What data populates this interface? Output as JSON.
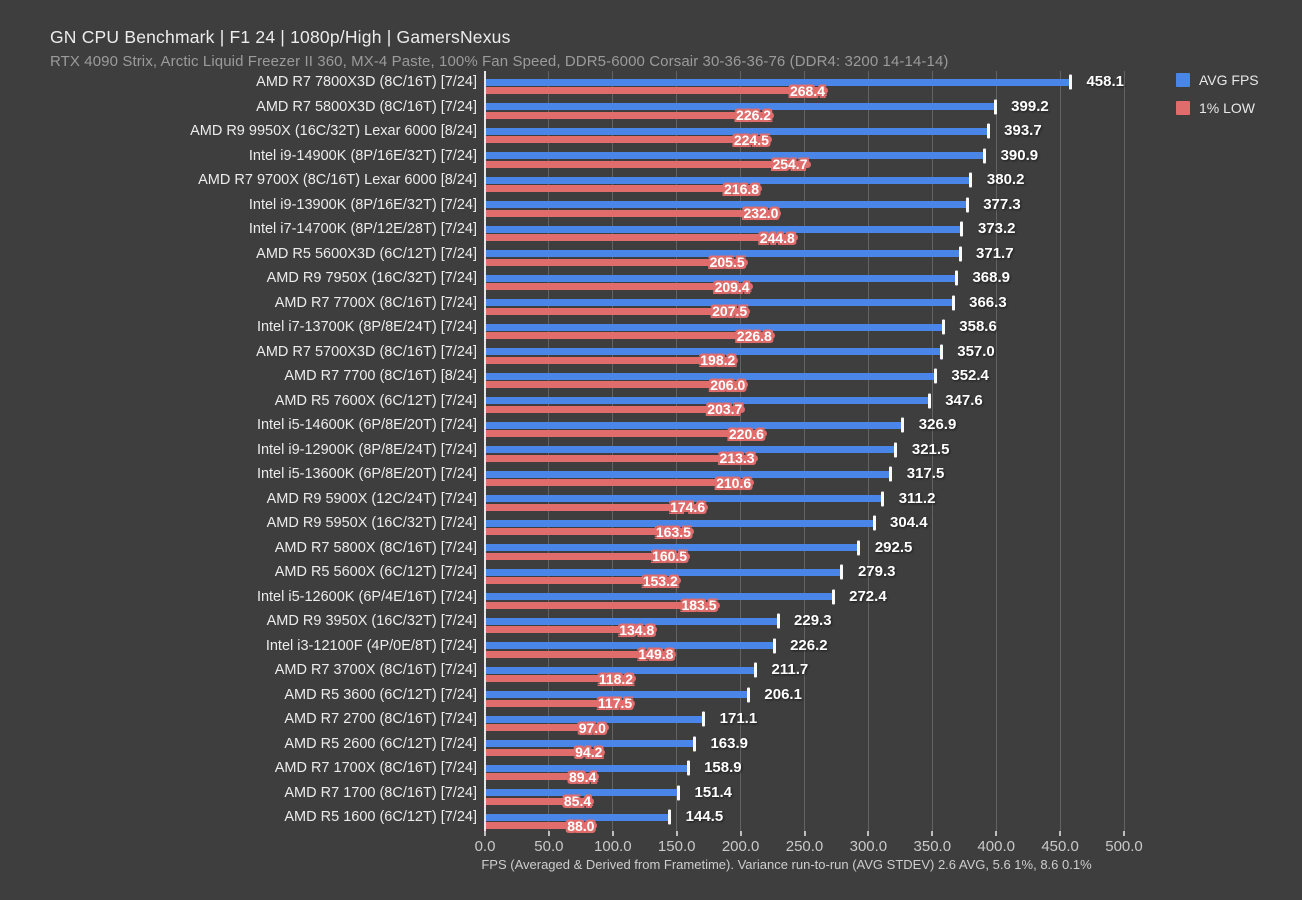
{
  "header": {
    "title": "GN CPU Benchmark | F1 24 | 1080p/High | GamersNexus",
    "subtitle": "RTX 4090 Strix, Arctic Liquid Freezer II 360, MX-4 Paste, 100% Fan Speed, DDR5-6000 Corsair 30-36-36-76 (DDR4: 3200 14-14-14)"
  },
  "legend": {
    "items": [
      {
        "label": "AVG FPS",
        "color": "#4a86e8"
      },
      {
        "label": "1% LOW",
        "color": "#e06c6c"
      }
    ]
  },
  "axis": {
    "ticks": [
      "0.0",
      "50.0",
      "100.0",
      "150.0",
      "200.0",
      "250.0",
      "300.0",
      "350.0",
      "400.0",
      "450.0",
      "500.0"
    ],
    "caption": "FPS (Averaged & Derived from Frametime). Variance run-to-run (AVG STDEV) 2.6 AVG, 5.6 1%, 8.6 0.1%"
  },
  "colors": {
    "background": "#3e3e3e",
    "avg_bar": "#4a86e8",
    "low_bar": "#e06c6c",
    "gridline": "#636363",
    "axis_line": "#e6e6e6",
    "stdev_tick": "#fbfbfb"
  },
  "chart_data": {
    "type": "bar",
    "orientation": "horizontal",
    "title": "GN CPU Benchmark | F1 24 | 1080p/High | GamersNexus",
    "subtitle": "RTX 4090 Strix, Arctic Liquid Freezer II 360, MX-4 Paste, 100% Fan Speed, DDR5-6000 Corsair 30-36-36-76 (DDR4: 3200 14-14-14)",
    "xlabel": "FPS (Averaged & Derived from Frametime). Variance run-to-run (AVG STDEV) 2.6 AVG, 5.6 1%, 8.6 0.1%",
    "xlim": [
      0,
      500
    ],
    "grid": true,
    "legend_position": "top-right",
    "categories": [
      "AMD R7 7800X3D (8C/16T) [7/24]",
      "AMD R7 5800X3D (8C/16T) [7/24]",
      "AMD R9 9950X (16C/32T) Lexar 6000 [8/24]",
      "Intel i9-14900K (8P/16E/32T) [7/24]",
      "AMD R7 9700X (8C/16T) Lexar 6000 [8/24]",
      "Intel i9-13900K (8P/16E/32T) [7/24]",
      "Intel i7-14700K (8P/12E/28T) [7/24]",
      "AMD R5 5600X3D (6C/12T) [7/24]",
      "AMD R9 7950X (16C/32T) [7/24]",
      "AMD R7 7700X (8C/16T) [7/24]",
      "Intel i7-13700K (8P/8E/24T) [7/24]",
      "AMD R7 5700X3D (8C/16T) [7/24]",
      "AMD R7 7700 (8C/16T) [8/24]",
      "AMD R5 7600X (6C/12T) [7/24]",
      "Intel i5-14600K (6P/8E/20T) [7/24]",
      "Intel i9-12900K (8P/8E/24T) [7/24]",
      "Intel i5-13600K (6P/8E/20T) [7/24]",
      "AMD R9 5900X (12C/24T) [7/24]",
      "AMD R9 5950X (16C/32T) [7/24]",
      "AMD R7 5800X (8C/16T) [7/24]",
      "AMD R5 5600X (6C/12T) [7/24]",
      "Intel i5-12600K (6P/4E/16T) [7/24]",
      "AMD R9 3950X (16C/32T) [7/24]",
      "Intel i3-12100F (4P/0E/8T) [7/24]",
      "AMD R7 3700X (8C/16T) [7/24]",
      "AMD R5 3600 (6C/12T) [7/24]",
      "AMD R7 2700 (8C/16T) [7/24]",
      "AMD R5 2600 (6C/12T) [7/24]",
      "AMD R7 1700X (8C/16T) [7/24]",
      "AMD R7 1700 (8C/16T) [7/24]",
      "AMD R5 1600 (6C/12T) [7/24]"
    ],
    "series": [
      {
        "name": "AVG FPS",
        "color": "#4a86e8",
        "values": [
          458.1,
          399.2,
          393.7,
          390.9,
          380.2,
          377.3,
          373.2,
          371.7,
          368.9,
          366.3,
          358.6,
          357.0,
          352.4,
          347.6,
          326.9,
          321.5,
          317.5,
          311.2,
          304.4,
          292.5,
          279.3,
          272.4,
          229.3,
          226.2,
          211.7,
          206.1,
          171.1,
          163.9,
          158.9,
          151.4,
          144.5
        ]
      },
      {
        "name": "1% LOW",
        "color": "#e06c6c",
        "values": [
          268.4,
          226.2,
          224.5,
          254.7,
          216.8,
          232.0,
          244.8,
          205.5,
          209.4,
          207.5,
          226.8,
          198.2,
          206.0,
          203.7,
          220.6,
          213.3,
          210.6,
          174.6,
          163.5,
          160.5,
          153.2,
          183.5,
          134.8,
          149.8,
          118.2,
          117.5,
          97.0,
          94.2,
          89.4,
          85.4,
          88.0
        ]
      }
    ]
  }
}
